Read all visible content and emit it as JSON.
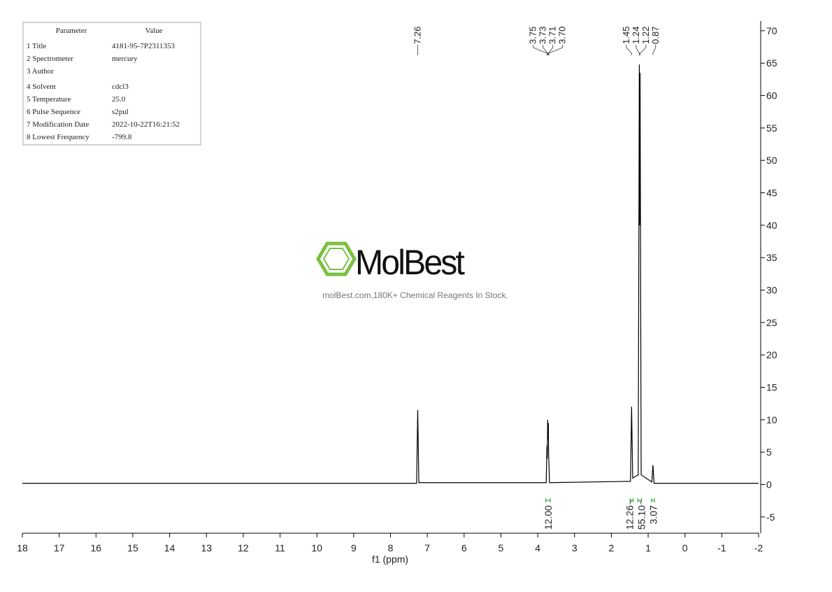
{
  "chart_data": {
    "type": "nmr",
    "x_label": "f1 (ppm)",
    "xlim": [
      18,
      -2
    ],
    "xticks": [
      18,
      17,
      16,
      15,
      14,
      13,
      12,
      11,
      10,
      9,
      8,
      7,
      6,
      5,
      4,
      3,
      2,
      1,
      0,
      -1,
      -2
    ],
    "ylim": [
      -7.5,
      71.5
    ],
    "yticks": [
      -5,
      0,
      5,
      10,
      15,
      20,
      25,
      30,
      35,
      40,
      45,
      50,
      55,
      60,
      65,
      70
    ],
    "color": "#000000",
    "x": [
      18,
      7.29,
      7.26,
      7.23,
      3.77,
      3.75,
      3.74,
      3.73,
      3.72,
      3.71,
      3.705,
      3.7,
      3.68,
      1.48,
      1.45,
      1.42,
      1.27,
      1.24,
      1.23,
      1.22,
      1.19,
      0.9,
      0.87,
      0.84,
      -2
    ],
    "values": [
      0.2,
      0.2,
      11.5,
      0.3,
      0.3,
      6,
      4,
      10,
      7,
      9.5,
      5,
      4,
      0.3,
      0.5,
      12,
      1,
      1.5,
      64.8,
      40,
      63.5,
      1.5,
      0.4,
      3,
      0.2,
      0.2
    ],
    "peak_labels": [
      7.26,
      3.75,
      3.73,
      3.71,
      {
        "value": 3.7,
        "label": "3.70"
      },
      1.45,
      1.24,
      1.22,
      0.87
    ],
    "integral_color": "#1a9a1a",
    "integrals": [
      {
        "range": [
          3.78,
          3.66
        ],
        "value": 12,
        "label": "12.00"
      },
      {
        "range": [
          1.49,
          1.41
        ],
        "value": 12.26,
        "label": "12.26"
      },
      {
        "range": [
          1.28,
          1.18
        ],
        "value": 55.1,
        "label": "55.10"
      },
      {
        "range": [
          0.91,
          0.83
        ],
        "value": 3.07,
        "label": "3.07"
      }
    ]
  },
  "parameters": {
    "header": [
      "Parameter",
      "Value"
    ],
    "rows": [
      [
        "1 Title",
        "4181-95-7P2311353"
      ],
      [
        "2 Spectrometer",
        "mercury"
      ],
      [
        "3 Author",
        ""
      ],
      [
        "4 Solvent",
        "cdcl3"
      ],
      [
        "5 Temperature",
        "25.0"
      ],
      [
        "6 Pulse Sequence",
        "s2pul"
      ],
      [
        "7 Modification Date",
        "2022-10-22T16:21:52"
      ],
      [
        "8 Lowest Frequency",
        "-799.8"
      ]
    ]
  },
  "watermark": {
    "brand": "MolBest",
    "tagline": "molBest.com,180K+ Chemical Reagents In Stock."
  }
}
